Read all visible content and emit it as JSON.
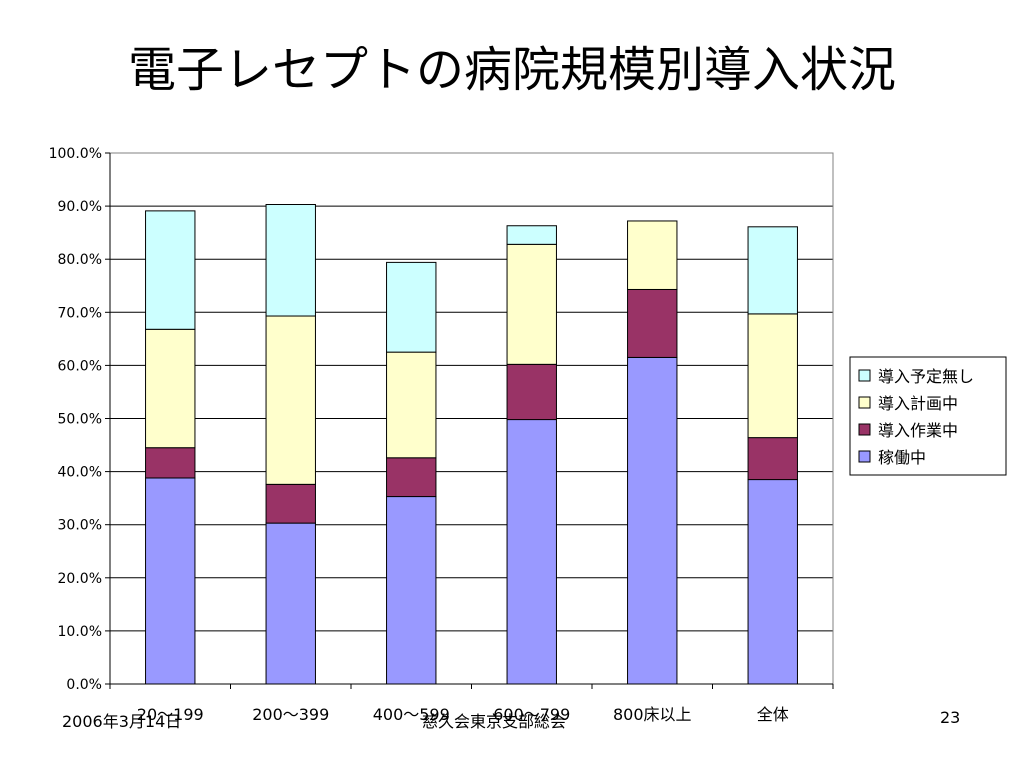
{
  "slide": {
    "title": "電子レセプトの病院規模別導入状況",
    "footer_date": "2006年3月14日",
    "footer_org": "慈久会東京支部総会",
    "page_number": "23"
  },
  "chart_data": {
    "type": "bar",
    "stacked": true,
    "categories": [
      "20～199",
      "200～399",
      "400～599",
      "600～799",
      "800床以上",
      "全体"
    ],
    "series": [
      {
        "name": "稼働中",
        "color": "#9999FF",
        "values": [
          38.8,
          30.3,
          35.3,
          49.8,
          61.5,
          38.5
        ]
      },
      {
        "name": "導入作業中",
        "color": "#993366",
        "values": [
          5.7,
          7.3,
          7.3,
          10.4,
          12.8,
          7.9
        ]
      },
      {
        "name": "導入計画中",
        "color": "#FFFFCC",
        "values": [
          22.3,
          31.7,
          19.9,
          22.6,
          12.9,
          23.3
        ]
      },
      {
        "name": "導入予定無し",
        "color": "#CCFFFF",
        "values": [
          22.3,
          21.0,
          16.9,
          3.5,
          0.0,
          16.4
        ]
      }
    ],
    "ylim": [
      0,
      100
    ],
    "yticks": [
      "0.0%",
      "10.0%",
      "20.0%",
      "30.0%",
      "40.0%",
      "50.0%",
      "60.0%",
      "70.0%",
      "80.0%",
      "90.0%",
      "100.0%"
    ],
    "grid": true,
    "legend_position": "right"
  }
}
